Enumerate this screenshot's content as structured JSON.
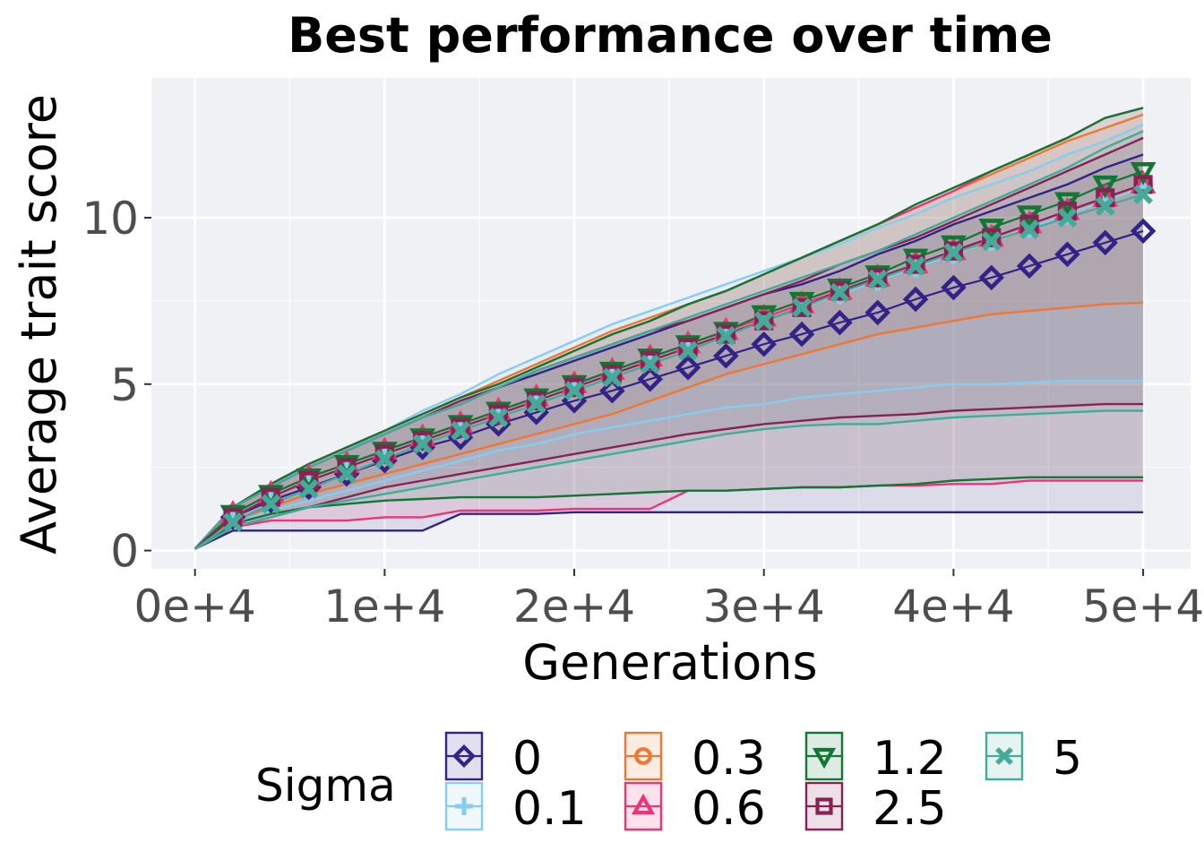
{
  "chart_data": {
    "type": "line",
    "title": "Best performance over time",
    "xlabel": "Generations",
    "ylabel": "Average trait score",
    "xlim": [
      -2300,
      52500
    ],
    "ylim": [
      -0.55,
      14.2
    ],
    "x_ticks": [
      0,
      10000,
      20000,
      30000,
      40000,
      50000
    ],
    "x_tick_labels": [
      "0e+4",
      "1e+4",
      "2e+4",
      "3e+4",
      "4e+4",
      "5e+4"
    ],
    "y_ticks": [
      0,
      5,
      10
    ],
    "y_tick_labels": [
      "0",
      "5",
      "10"
    ],
    "grid": true,
    "legend": {
      "title": "Sigma",
      "position": "bottom"
    },
    "x": [
      0,
      2000,
      4000,
      6000,
      8000,
      10000,
      12000,
      14000,
      16000,
      18000,
      20000,
      22000,
      24000,
      26000,
      28000,
      30000,
      32000,
      34000,
      36000,
      38000,
      40000,
      42000,
      44000,
      46000,
      48000,
      50000
    ],
    "series": [
      {
        "name": "0",
        "color": "#332288",
        "marker": "diamond",
        "values": [
          0.05,
          1.0,
          1.5,
          1.9,
          2.3,
          2.7,
          3.1,
          3.4,
          3.8,
          4.15,
          4.5,
          4.8,
          5.15,
          5.5,
          5.85,
          6.2,
          6.5,
          6.85,
          7.15,
          7.55,
          7.9,
          8.2,
          8.55,
          8.9,
          9.25,
          9.6
        ],
        "band_low": [
          0.05,
          0.6,
          0.6,
          0.6,
          0.6,
          0.6,
          0.6,
          1.1,
          1.1,
          1.1,
          1.15,
          1.15,
          1.15,
          1.15,
          1.15,
          1.15,
          1.15,
          1.15,
          1.15,
          1.15,
          1.15,
          1.15,
          1.15,
          1.15,
          1.15,
          1.15
        ],
        "band_high": [
          0.05,
          1.3,
          2.0,
          2.5,
          3.0,
          3.5,
          4.0,
          4.4,
          4.9,
          5.3,
          5.7,
          6.1,
          6.5,
          6.9,
          7.3,
          7.7,
          8.0,
          8.4,
          8.9,
          9.3,
          9.8,
          10.2,
          10.6,
          11.0,
          11.5,
          11.9
        ]
      },
      {
        "name": "0.1",
        "color": "#88CCEE",
        "marker": "plus",
        "values": [
          0.05,
          1.0,
          1.6,
          2.1,
          2.5,
          2.9,
          3.3,
          3.7,
          4.1,
          4.5,
          4.9,
          5.3,
          5.7,
          6.1,
          6.5,
          6.9,
          7.3,
          7.7,
          8.1,
          8.5,
          8.9,
          9.3,
          9.7,
          10.1,
          10.5,
          10.9
        ],
        "band_low": [
          0.05,
          0.8,
          1.2,
          1.5,
          1.8,
          2.1,
          2.4,
          2.7,
          3.0,
          3.2,
          3.5,
          3.7,
          3.9,
          4.1,
          4.3,
          4.4,
          4.6,
          4.7,
          4.8,
          4.9,
          5.0,
          5.0,
          5.05,
          5.1,
          5.1,
          5.1
        ],
        "band_high": [
          0.05,
          1.3,
          2.0,
          2.5,
          3.0,
          3.6,
          4.2,
          4.7,
          5.3,
          5.8,
          6.3,
          6.8,
          7.2,
          7.6,
          8.0,
          8.4,
          8.8,
          9.2,
          9.7,
          10.1,
          10.6,
          11.0,
          11.4,
          11.9,
          12.3,
          12.8
        ]
      },
      {
        "name": "0.3",
        "color": "#EE7733",
        "marker": "circle",
        "values": [
          0.05,
          1.1,
          1.7,
          2.2,
          2.6,
          3.0,
          3.4,
          3.8,
          4.2,
          4.6,
          5.0,
          5.4,
          5.8,
          6.2,
          6.6,
          7.0,
          7.4,
          7.8,
          8.2,
          8.6,
          9.0,
          9.4,
          9.8,
          10.2,
          10.6,
          11.0
        ],
        "band_low": [
          0.05,
          0.9,
          1.3,
          1.7,
          2.0,
          2.3,
          2.6,
          2.9,
          3.2,
          3.5,
          3.8,
          4.1,
          4.5,
          4.9,
          5.3,
          5.6,
          5.9,
          6.2,
          6.5,
          6.7,
          6.9,
          7.1,
          7.2,
          7.3,
          7.4,
          7.45
        ],
        "band_high": [
          0.05,
          1.3,
          2.0,
          2.6,
          3.1,
          3.6,
          4.1,
          4.6,
          5.1,
          5.6,
          6.1,
          6.6,
          7.0,
          7.4,
          7.8,
          8.3,
          8.8,
          9.3,
          9.8,
          10.3,
          10.8,
          11.3,
          11.8,
          12.3,
          12.7,
          13.1
        ]
      },
      {
        "name": "0.6",
        "color": "#EE3377",
        "marker": "triangle",
        "values": [
          0.05,
          1.1,
          1.7,
          2.2,
          2.6,
          3.0,
          3.4,
          3.8,
          4.2,
          4.6,
          5.0,
          5.4,
          5.8,
          6.2,
          6.6,
          7.0,
          7.4,
          7.8,
          8.2,
          8.6,
          9.0,
          9.4,
          9.8,
          10.2,
          10.6,
          11.0
        ],
        "band_low": [
          0.05,
          0.7,
          0.9,
          0.9,
          0.9,
          1.0,
          1.0,
          1.2,
          1.2,
          1.2,
          1.25,
          1.25,
          1.25,
          1.8,
          1.8,
          1.85,
          1.9,
          1.9,
          1.95,
          1.95,
          2.0,
          2.0,
          2.1,
          2.1,
          2.1,
          2.1
        ],
        "band_high": [
          0.05,
          1.3,
          2.0,
          2.6,
          3.1,
          3.6,
          4.1,
          4.6,
          5.0,
          5.5,
          6.0,
          6.5,
          6.9,
          7.4,
          7.8,
          8.3,
          8.8,
          9.3,
          9.8,
          10.3,
          10.8,
          11.4,
          11.9,
          12.4,
          13.0,
          13.3
        ]
      },
      {
        "name": "1.2",
        "color": "#117733",
        "marker": "triangle-down",
        "values": [
          0.05,
          1.1,
          1.7,
          2.2,
          2.6,
          3.0,
          3.4,
          3.8,
          4.2,
          4.6,
          5.0,
          5.4,
          5.8,
          6.2,
          6.6,
          7.1,
          7.5,
          7.9,
          8.3,
          8.8,
          9.2,
          9.7,
          10.1,
          10.5,
          11.0,
          11.4
        ],
        "band_low": [
          0.05,
          0.8,
          1.1,
          1.3,
          1.4,
          1.5,
          1.55,
          1.6,
          1.6,
          1.6,
          1.65,
          1.7,
          1.75,
          1.8,
          1.8,
          1.85,
          1.9,
          1.9,
          1.95,
          2.0,
          2.1,
          2.15,
          2.2,
          2.2,
          2.2,
          2.2
        ],
        "band_high": [
          0.05,
          1.3,
          2.0,
          2.6,
          3.1,
          3.6,
          4.1,
          4.6,
          5.0,
          5.5,
          6.0,
          6.5,
          6.9,
          7.4,
          7.8,
          8.3,
          8.8,
          9.3,
          9.8,
          10.4,
          10.9,
          11.4,
          11.9,
          12.4,
          13.0,
          13.3
        ]
      },
      {
        "name": "2.5",
        "color": "#882255",
        "marker": "square",
        "values": [
          0.05,
          1.0,
          1.6,
          2.1,
          2.5,
          2.9,
          3.3,
          3.7,
          4.1,
          4.5,
          4.9,
          5.3,
          5.7,
          6.1,
          6.5,
          6.9,
          7.3,
          7.8,
          8.2,
          8.6,
          9.0,
          9.4,
          9.8,
          10.2,
          10.6,
          11.0
        ],
        "band_low": [
          0.05,
          0.7,
          1.0,
          1.3,
          1.6,
          1.9,
          2.1,
          2.3,
          2.5,
          2.7,
          2.9,
          3.1,
          3.3,
          3.5,
          3.65,
          3.8,
          3.9,
          4.0,
          4.05,
          4.1,
          4.2,
          4.25,
          4.3,
          4.35,
          4.4,
          4.4
        ],
        "band_high": [
          0.05,
          1.3,
          1.9,
          2.5,
          3.0,
          3.5,
          4.0,
          4.5,
          4.9,
          5.4,
          5.8,
          6.2,
          6.6,
          6.9,
          7.3,
          7.7,
          8.1,
          8.6,
          9.0,
          9.4,
          9.9,
          10.4,
          10.9,
          11.4,
          11.9,
          12.4
        ]
      },
      {
        "name": "5",
        "color": "#44AA99",
        "marker": "cross",
        "values": [
          0.05,
          0.85,
          1.4,
          1.85,
          2.3,
          2.75,
          3.2,
          3.6,
          4.0,
          4.4,
          4.8,
          5.2,
          5.6,
          6.0,
          6.45,
          6.9,
          7.3,
          7.75,
          8.15,
          8.55,
          8.95,
          9.3,
          9.65,
          10.0,
          10.35,
          10.7
        ],
        "band_low": [
          0.05,
          0.7,
          1.0,
          1.3,
          1.5,
          1.7,
          1.9,
          2.1,
          2.3,
          2.5,
          2.7,
          2.9,
          3.1,
          3.3,
          3.5,
          3.65,
          3.75,
          3.8,
          3.8,
          3.9,
          4.0,
          4.05,
          4.1,
          4.15,
          4.2,
          4.2
        ],
        "band_high": [
          0.05,
          1.3,
          1.9,
          2.5,
          3.0,
          3.5,
          4.0,
          4.4,
          4.9,
          5.4,
          5.8,
          6.2,
          6.6,
          7.0,
          7.4,
          7.8,
          8.2,
          8.6,
          9.0,
          9.5,
          10.0,
          10.5,
          11.0,
          11.5,
          12.1,
          12.6
        ]
      }
    ]
  }
}
